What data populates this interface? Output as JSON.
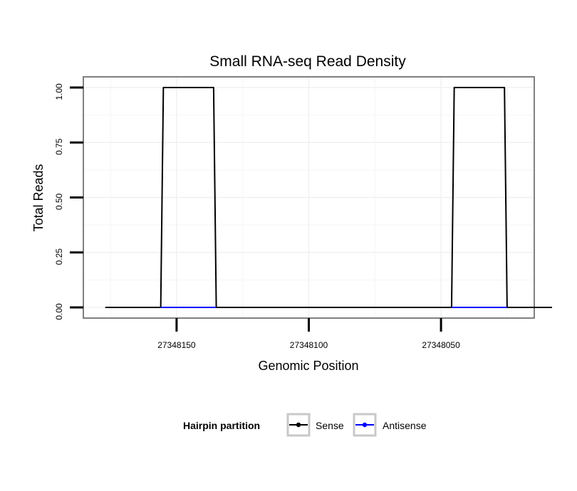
{
  "chart_data": {
    "type": "line",
    "title": "Small RNA-seq Read Density",
    "xlabel": "Genomic Position",
    "ylabel": "Total Reads",
    "x_reversed": true,
    "xlim": [
      27348185,
      27348015
    ],
    "ylim": [
      0,
      1
    ],
    "x_ticks": [
      {
        "value": 27348150,
        "label": "27348150"
      },
      {
        "value": 27348100,
        "label": "27348100"
      },
      {
        "value": 27348050,
        "label": "27348050"
      }
    ],
    "y_ticks": [
      {
        "value": 0,
        "label": "0.00"
      },
      {
        "value": 0.25,
        "label": "0.25"
      },
      {
        "value": 0.5,
        "label": "0.50"
      },
      {
        "value": 0.75,
        "label": "0.75"
      },
      {
        "value": 1,
        "label": "1.00"
      }
    ],
    "series": [
      {
        "name": "Sense",
        "color": "#000000",
        "x": [
          27348177,
          27348156,
          27348155,
          27348136,
          27348135,
          27348046,
          27348045,
          27348026,
          27348025,
          27348008
        ],
        "y": [
          0,
          0,
          1,
          1,
          0,
          0,
          1,
          1,
          0,
          0
        ]
      },
      {
        "name": "Antisense",
        "color": "#0000ff",
        "segments": [
          {
            "x": [
              27348156,
              27348135
            ],
            "y": [
              0,
              0
            ]
          },
          {
            "x": [
              27348046,
              27348025
            ],
            "y": [
              0,
              0
            ]
          }
        ]
      }
    ],
    "grid": true,
    "legend": {
      "title": "Hairpin partition",
      "position": "bottom",
      "entries": [
        {
          "label": "Sense",
          "color": "#000000"
        },
        {
          "label": "Antisense",
          "color": "#0000ff"
        }
      ]
    }
  }
}
